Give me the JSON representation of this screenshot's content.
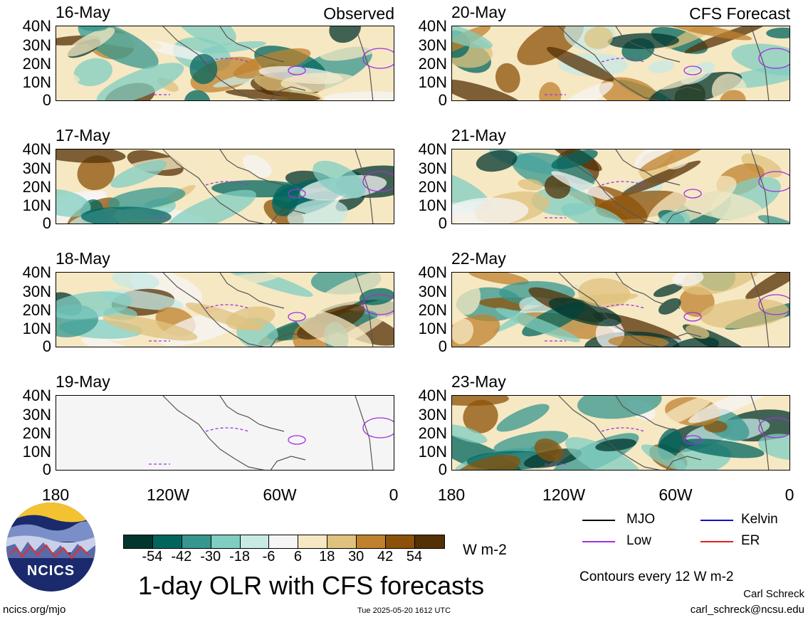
{
  "panels_left": [
    {
      "date": "16-May",
      "header_right": "Observed"
    },
    {
      "date": "17-May",
      "header_right": ""
    },
    {
      "date": "18-May",
      "header_right": ""
    },
    {
      "date": "19-May",
      "header_right": ""
    }
  ],
  "panels_right": [
    {
      "date": "20-May",
      "header_right": "CFS Forecast"
    },
    {
      "date": "21-May",
      "header_right": ""
    },
    {
      "date": "22-May",
      "header_right": ""
    },
    {
      "date": "23-May",
      "header_right": ""
    }
  ],
  "y_axis_labels": [
    "40N",
    "30N",
    "20N",
    "10N",
    "0"
  ],
  "x_axis_labels": [
    "180",
    "120W",
    "60W",
    "0"
  ],
  "colorbar": {
    "labels": [
      "-54",
      "-42",
      "-30",
      "-18",
      "-6",
      "6",
      "18",
      "30",
      "42",
      "54"
    ],
    "colors": [
      "#01352d",
      "#00665d",
      "#35978f",
      "#80cdc1",
      "#c7eae5",
      "#f5f5f5",
      "#f6e8c3",
      "#dfc27d",
      "#bf812d",
      "#8c510a",
      "#543005"
    ],
    "units": "W m-2"
  },
  "legend": {
    "items": [
      {
        "label": "MJO",
        "color": "#000000"
      },
      {
        "label": "Kelvin",
        "color": "#1010c0"
      },
      {
        "label": "Low",
        "color": "#a030e0"
      },
      {
        "label": "ER",
        "color": "#e02020"
      }
    ]
  },
  "contour_note": "Contours every 12 W m-2",
  "main_title": "1-day OLR with CFS forecasts",
  "logo_text": "NCICS",
  "footer": {
    "left_url": "ncics.org/mjo",
    "timestamp": "Tue 2025-05-20 1612 UTC",
    "author": "Carl Schreck",
    "email": "carl_schreck@ncsu.edu"
  }
}
